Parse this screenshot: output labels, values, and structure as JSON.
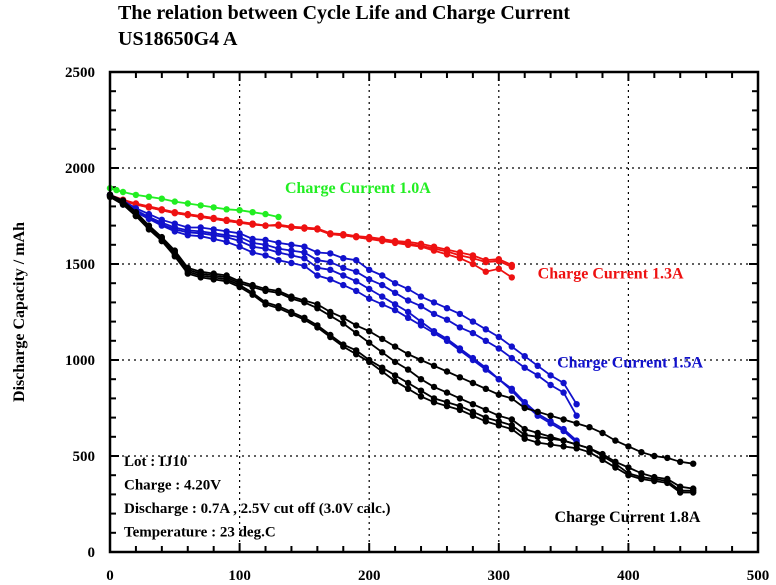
{
  "chart_data": {
    "type": "line",
    "title": "The relation between Cycle Life and Charge Current",
    "subtitle": "US18650G4 A",
    "xlabel": "",
    "ylabel": "Discharge Capacity   /   mAh",
    "xlim": [
      0,
      500
    ],
    "ylim": [
      0,
      2500
    ],
    "xticks": [
      0,
      100,
      200,
      300,
      400,
      500
    ],
    "yticks": [
      0,
      500,
      1000,
      1500,
      2000,
      2500
    ],
    "xtick_labels": [
      "0",
      "100",
      "200",
      "300",
      "400",
      "500"
    ],
    "ytick_labels": [
      "0",
      "500",
      "1000",
      "1500",
      "2000",
      "2500"
    ],
    "grid": true,
    "legend": "inline",
    "notes": [
      "Lot : IJ10",
      "Charge : 4.20V",
      "Discharge : 0.7A , 2.5V cut off (3.0V calc.)",
      "Temperature : 23 deg.C"
    ],
    "series": [
      {
        "name": "Charge Current 1.0A",
        "color": "#22ee22",
        "label_pos": [
          135,
          1870
        ],
        "curves": [
          {
            "x": [
              0,
              5,
              10,
              20,
              30,
              40,
              50,
              60,
              70,
              80,
              90,
              100,
              110,
              120,
              130
            ],
            "y": [
              1895,
              1885,
              1875,
              1860,
              1850,
              1840,
              1825,
              1815,
              1805,
              1795,
              1785,
              1780,
              1770,
              1760,
              1745
            ]
          }
        ]
      },
      {
        "name": "Charge Current 1.3A",
        "color": "#ee1111",
        "label_pos": [
          330,
          1425
        ],
        "curves": [
          {
            "x": [
              0,
              10,
              20,
              30,
              40,
              50,
              60,
              70,
              80,
              90,
              100,
              110,
              120,
              130,
              140,
              150,
              160,
              170,
              180,
              190,
              200,
              210,
              220,
              230,
              240,
              250,
              260,
              270,
              280,
              290,
              300,
              310
            ],
            "y": [
              1860,
              1835,
              1815,
              1800,
              1785,
              1770,
              1760,
              1750,
              1740,
              1730,
              1720,
              1710,
              1700,
              1705,
              1695,
              1690,
              1685,
              1660,
              1655,
              1645,
              1640,
              1630,
              1620,
              1615,
              1605,
              1590,
              1575,
              1560,
              1545,
              1520,
              1525,
              1495
            ]
          },
          {
            "x": [
              0,
              10,
              20,
              30,
              40,
              50,
              60,
              70,
              80,
              90,
              100,
              110,
              120,
              130,
              140,
              150,
              160,
              170,
              180,
              190,
              200,
              210,
              220,
              230,
              240,
              250,
              260,
              270,
              280,
              290,
              300,
              310
            ],
            "y": [
              1860,
              1830,
              1810,
              1795,
              1780,
              1765,
              1755,
              1745,
              1735,
              1725,
              1715,
              1710,
              1700,
              1700,
              1690,
              1685,
              1680,
              1655,
              1650,
              1640,
              1630,
              1625,
              1615,
              1605,
              1595,
              1580,
              1565,
              1545,
              1530,
              1510,
              1515,
              1485
            ]
          },
          {
            "x": [
              0,
              10,
              20,
              30,
              40,
              50,
              60,
              70,
              80,
              90,
              100,
              110,
              120,
              130,
              140,
              150,
              160,
              170,
              180,
              190,
              200,
              210,
              220,
              230,
              240,
              250,
              260,
              270,
              280,
              290,
              300,
              310
            ],
            "y": [
              1860,
              1830,
              1810,
              1795,
              1780,
              1765,
              1755,
              1745,
              1735,
              1725,
              1715,
              1705,
              1700,
              1700,
              1690,
              1685,
              1680,
              1655,
              1650,
              1640,
              1630,
              1620,
              1610,
              1600,
              1590,
              1570,
              1550,
              1530,
              1500,
              1460,
              1475,
              1430
            ]
          }
        ]
      },
      {
        "name": "Charge Current 1.5A",
        "color": "#1111cc",
        "label_pos": [
          345,
          960
        ],
        "curves": [
          {
            "x": [
              0,
              10,
              20,
              30,
              40,
              50,
              60,
              70,
              80,
              90,
              100,
              110,
              120,
              130,
              140,
              150,
              160,
              170,
              180,
              190,
              200,
              210,
              220,
              230,
              240,
              250,
              260,
              270,
              280,
              290,
              300,
              310,
              320,
              330,
              340,
              350,
              360
            ],
            "y": [
              1860,
              1830,
              1790,
              1760,
              1730,
              1710,
              1690,
              1690,
              1680,
              1670,
              1660,
              1630,
              1625,
              1610,
              1600,
              1590,
              1560,
              1555,
              1530,
              1520,
              1470,
              1440,
              1400,
              1370,
              1330,
              1300,
              1270,
              1240,
              1200,
              1160,
              1120,
              1070,
              1020,
              970,
              920,
              880,
              770
            ]
          },
          {
            "x": [
              0,
              10,
              20,
              30,
              40,
              50,
              60,
              70,
              80,
              90,
              100,
              110,
              120,
              130,
              140,
              150,
              160,
              170,
              180,
              190,
              200,
              210,
              220,
              230,
              240,
              250,
              260,
              270,
              280,
              290,
              300,
              310,
              320,
              330,
              340,
              350,
              360
            ],
            "y": [
              1860,
              1820,
              1780,
              1745,
              1715,
              1690,
              1675,
              1670,
              1660,
              1650,
              1640,
              1610,
              1600,
              1580,
              1570,
              1560,
              1520,
              1510,
              1480,
              1460,
              1420,
              1390,
              1350,
              1310,
              1280,
              1240,
              1210,
              1170,
              1140,
              1100,
              1060,
              1010,
              960,
              920,
              870,
              830,
              710
            ]
          },
          {
            "x": [
              0,
              10,
              20,
              30,
              40,
              50,
              60,
              70,
              80,
              90,
              100,
              110,
              120,
              130,
              140,
              150,
              160,
              170,
              180,
              190,
              200,
              210,
              220,
              230,
              240,
              250,
              260,
              270,
              280,
              290,
              300,
              310,
              320,
              330,
              340,
              350,
              360
            ],
            "y": [
              1860,
              1815,
              1775,
              1740,
              1705,
              1680,
              1665,
              1660,
              1650,
              1640,
              1620,
              1590,
              1580,
              1560,
              1545,
              1530,
              1480,
              1470,
              1440,
              1410,
              1370,
              1330,
              1290,
              1250,
              1200,
              1150,
              1110,
              1060,
              1010,
              960,
              900,
              850,
              780,
              720,
              680,
              640,
              580
            ]
          },
          {
            "x": [
              0,
              10,
              20,
              30,
              40,
              50,
              60,
              70,
              80,
              90,
              100,
              110,
              120,
              130,
              140,
              150,
              160,
              170,
              180,
              190,
              200,
              210,
              220,
              230,
              240,
              250,
              260,
              270,
              280,
              290,
              300,
              310,
              320,
              330,
              340,
              350,
              360
            ],
            "y": [
              1860,
              1810,
              1770,
              1735,
              1700,
              1670,
              1650,
              1645,
              1630,
              1615,
              1590,
              1560,
              1545,
              1520,
              1505,
              1490,
              1440,
              1420,
              1390,
              1360,
              1320,
              1290,
              1260,
              1220,
              1180,
              1140,
              1100,
              1050,
              1000,
              950,
              900,
              840,
              770,
              710,
              670,
              630,
              570
            ]
          }
        ]
      },
      {
        "name": "Charge Current 1.8A",
        "color": "#000000",
        "label_pos": [
          343,
          155
        ],
        "curves": [
          {
            "x": [
              0,
              10,
              20,
              30,
              40,
              50,
              60,
              70,
              80,
              90,
              100,
              110,
              120,
              130,
              140,
              150,
              160,
              170,
              180,
              190,
              200,
              210,
              220,
              230,
              240,
              250,
              260,
              270,
              280,
              290,
              300,
              310,
              320,
              330,
              340,
              350,
              360,
              370,
              380,
              390,
              400,
              410,
              420,
              430,
              440,
              450
            ],
            "y": [
              1860,
              1830,
              1770,
              1700,
              1640,
              1570,
              1480,
              1460,
              1450,
              1440,
              1410,
              1390,
              1370,
              1360,
              1330,
              1310,
              1290,
              1250,
              1220,
              1180,
              1150,
              1110,
              1070,
              1030,
              1000,
              970,
              940,
              910,
              880,
              850,
              820,
              800,
              750,
              730,
              710,
              690,
              670,
              650,
              620,
              580,
              550,
              520,
              500,
              490,
              470,
              460
            ]
          },
          {
            "x": [
              0,
              10,
              20,
              30,
              40,
              50,
              60,
              70,
              80,
              90,
              100,
              110,
              120,
              130,
              140,
              150,
              160,
              170,
              180,
              190,
              200,
              210,
              220,
              230,
              240,
              250,
              260,
              270,
              280,
              290,
              300,
              310,
              320,
              330,
              340,
              350,
              360,
              370,
              380,
              390,
              400,
              410,
              420,
              430,
              440,
              450
            ],
            "y": [
              1860,
              1820,
              1760,
              1690,
              1630,
              1560,
              1470,
              1450,
              1440,
              1430,
              1400,
              1380,
              1360,
              1350,
              1320,
              1300,
              1270,
              1230,
              1190,
              1140,
              1090,
              1040,
              990,
              950,
              900,
              860,
              830,
              800,
              770,
              740,
              710,
              690,
              640,
              620,
              600,
              580,
              560,
              540,
              510,
              470,
              440,
              410,
              390,
              380,
              340,
              330
            ]
          },
          {
            "x": [
              0,
              10,
              20,
              30,
              40,
              50,
              60,
              70,
              80,
              90,
              100,
              110,
              120,
              130,
              140,
              150,
              160,
              170,
              180,
              190,
              200,
              210,
              220,
              230,
              240,
              250,
              260,
              270,
              280,
              290,
              300,
              310,
              320,
              330,
              340,
              350,
              360,
              370,
              380,
              390,
              400,
              410,
              420,
              430,
              440,
              450
            ],
            "y": [
              1850,
              1810,
              1750,
              1690,
              1620,
              1550,
              1460,
              1440,
              1430,
              1420,
              1390,
              1350,
              1300,
              1280,
              1250,
              1220,
              1180,
              1130,
              1080,
              1050,
              1000,
              960,
              920,
              880,
              840,
              800,
              780,
              760,
              730,
              700,
              680,
              660,
              610,
              600,
              590,
              580,
              560,
              540,
              500,
              460,
              410,
              390,
              380,
              370,
              320,
              320
            ]
          },
          {
            "x": [
              0,
              10,
              20,
              30,
              40,
              50,
              60,
              70,
              80,
              90,
              100,
              110,
              120,
              130,
              140,
              150,
              160,
              170,
              180,
              190,
              200,
              210,
              220,
              230,
              240,
              250,
              260,
              270,
              280,
              290,
              300,
              310,
              320,
              330,
              340,
              350,
              360,
              370,
              380,
              390,
              400,
              410,
              420,
              430,
              440,
              450
            ],
            "y": [
              1850,
              1810,
              1750,
              1680,
              1620,
              1540,
              1450,
              1430,
              1420,
              1410,
              1380,
              1340,
              1290,
              1270,
              1240,
              1210,
              1170,
              1120,
              1070,
              1030,
              990,
              940,
              890,
              850,
              810,
              780,
              760,
              740,
              710,
              680,
              660,
              640,
              590,
              570,
              560,
              550,
              540,
              520,
              480,
              440,
              400,
              380,
              370,
              360,
              310,
              310
            ]
          }
        ]
      }
    ]
  }
}
